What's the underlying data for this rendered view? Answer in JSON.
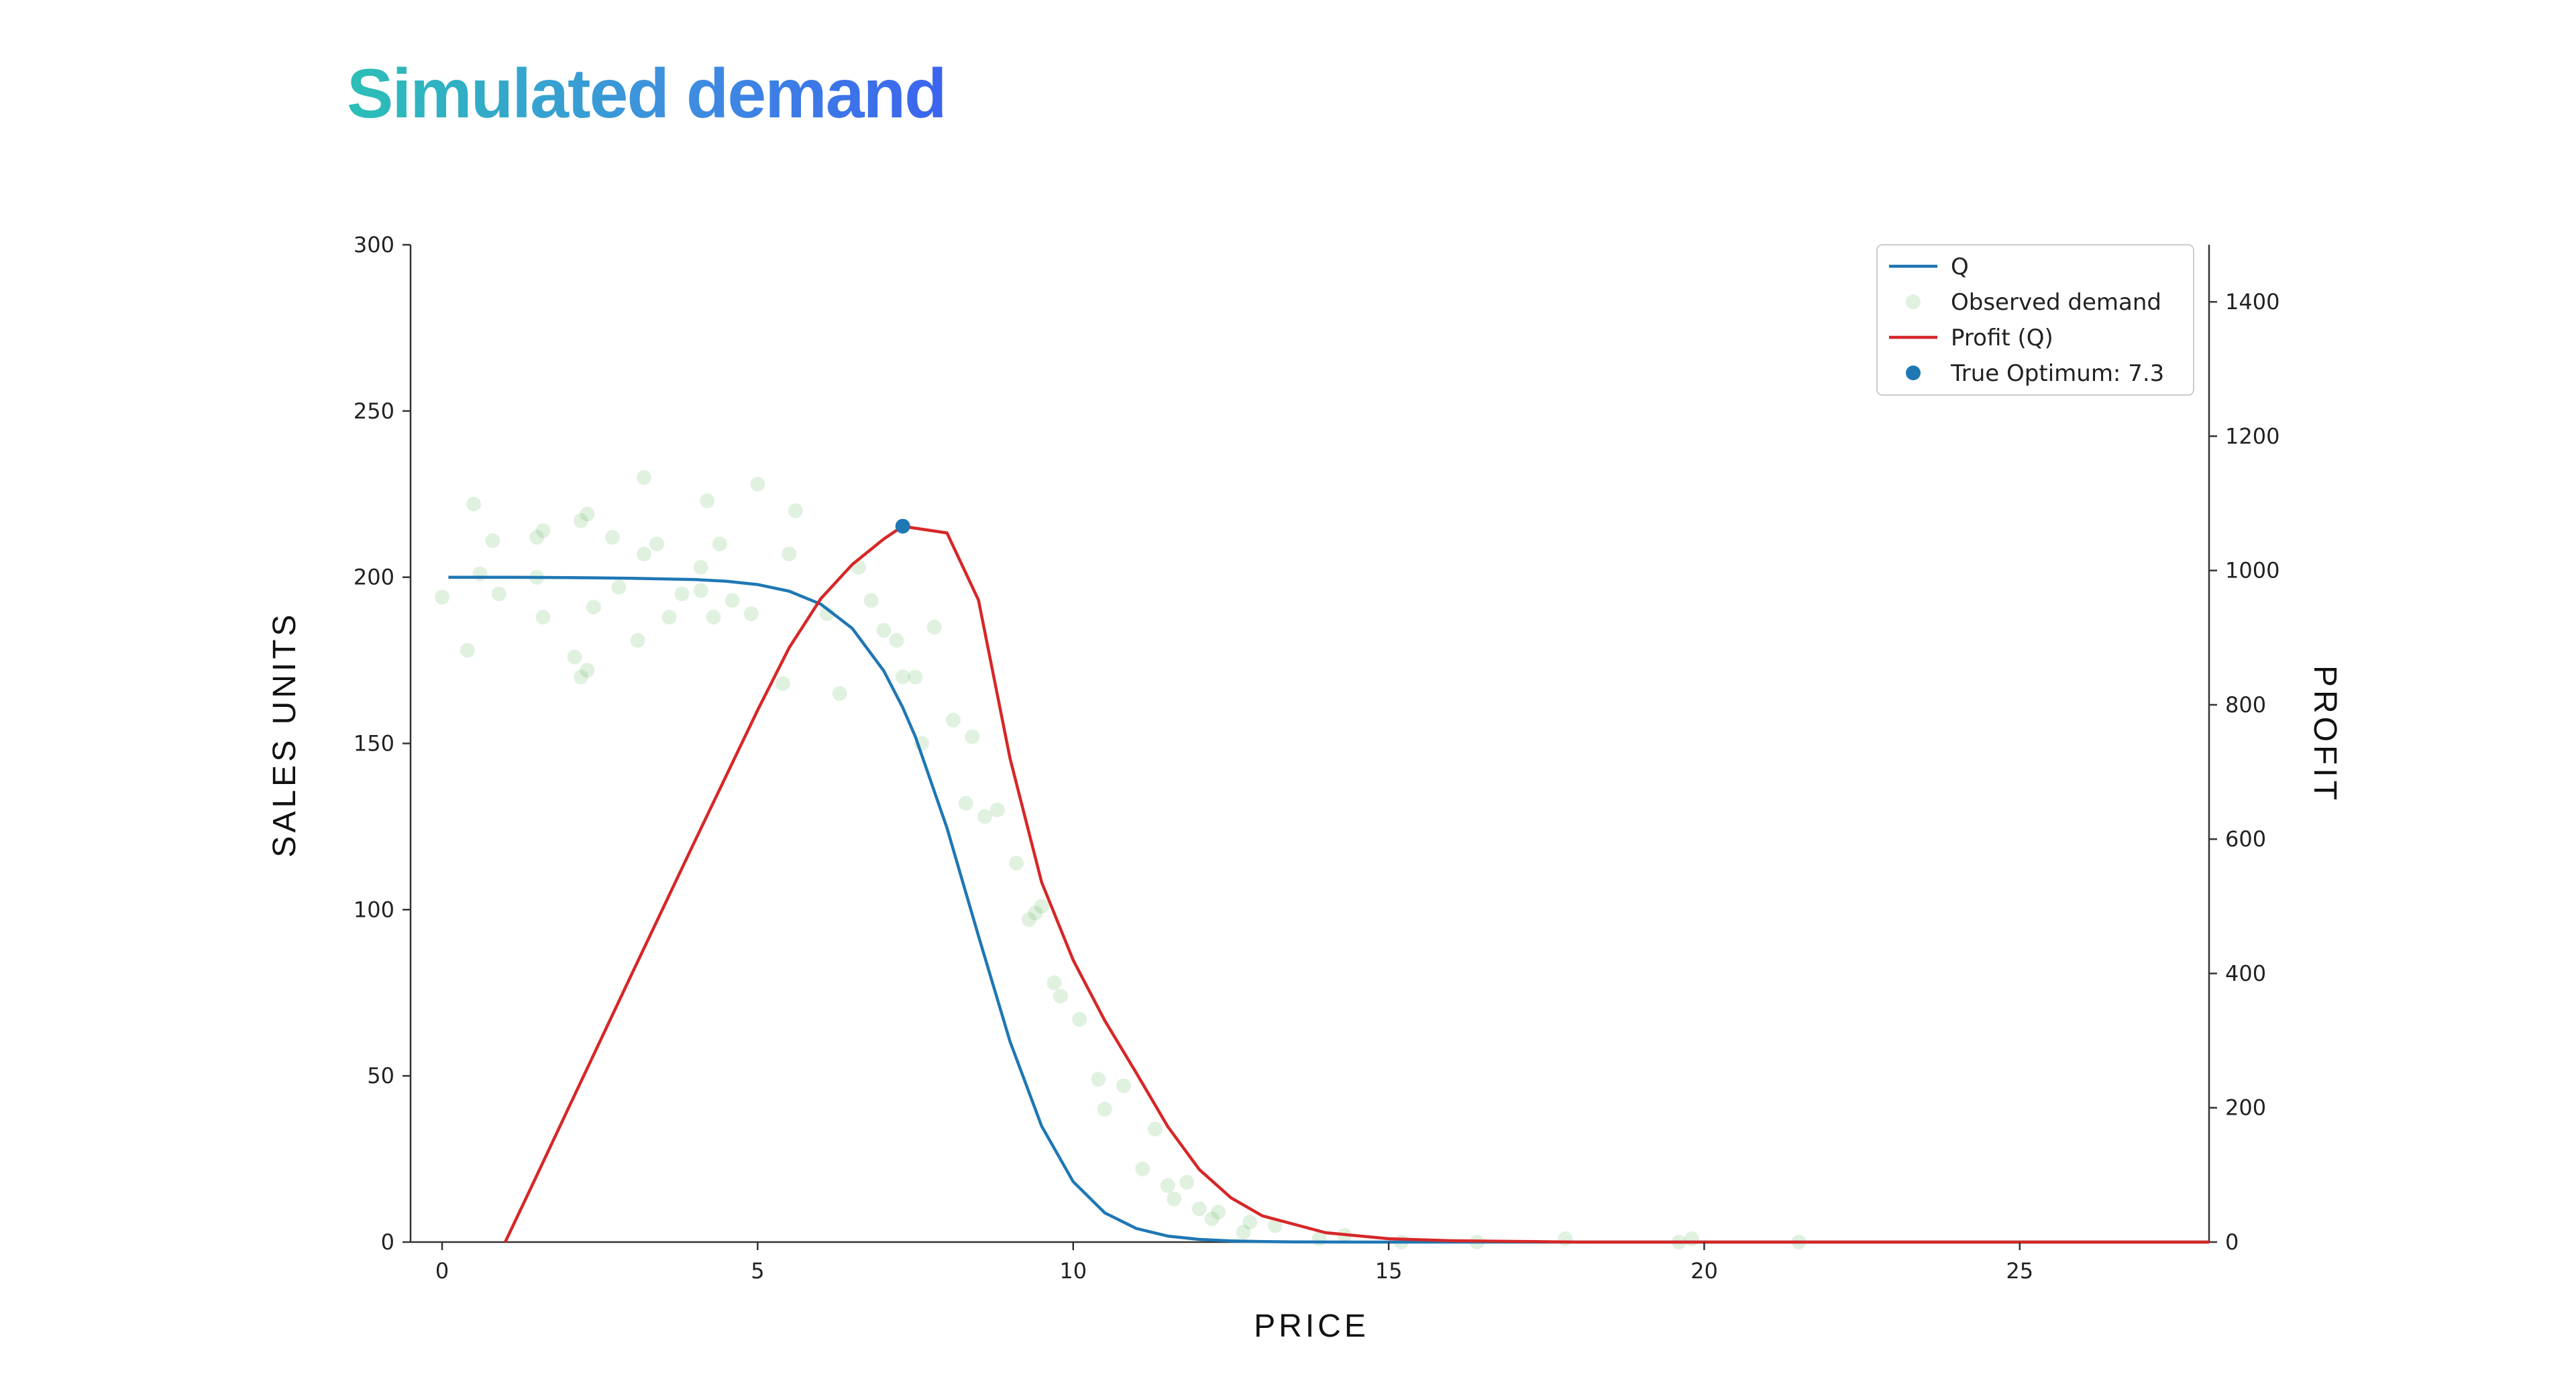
{
  "page": {
    "title": "Simulated demand"
  },
  "chart_data": {
    "type": "line",
    "xlabel": "PRICE",
    "ylabel": "SALES UNITS",
    "y2label": "PROFIT",
    "xlim": [
      -0.5,
      28
    ],
    "ylim": [
      0,
      300
    ],
    "y2lim": [
      0,
      1485
    ],
    "xticks": [
      0,
      5,
      10,
      15,
      20,
      25
    ],
    "yticks": [
      0,
      50,
      100,
      150,
      200,
      250,
      300
    ],
    "y2ticks": [
      0,
      200,
      400,
      600,
      800,
      1000,
      1200,
      1400
    ],
    "grid": false,
    "legend_position": "top-right",
    "colors": {
      "q": "#1f77b4",
      "profit": "#d62728",
      "observed": "#2ca02c",
      "optimum": "#1f77b4"
    },
    "series": [
      {
        "name": "Q",
        "axis": "left",
        "kind": "line",
        "x": [
          0.1,
          1,
          2,
          3,
          4,
          4.5,
          5,
          5.5,
          6,
          6.5,
          7,
          7.3,
          7.5,
          8,
          8.5,
          9,
          9.5,
          10,
          10.5,
          11,
          11.5,
          12,
          12.5,
          13,
          13.5,
          14,
          15,
          16,
          18,
          20,
          25,
          28
        ],
        "y": [
          200,
          200,
          199.9,
          199.7,
          199.3,
          198.8,
          197.8,
          195.8,
          191.9,
          184.6,
          171.8,
          160.8,
          152,
          124.6,
          92.1,
          60.3,
          34.9,
          18.2,
          8.8,
          4.1,
          1.8,
          0.8,
          0.35,
          0.15,
          0.06,
          0.03,
          0.005,
          0,
          0,
          0,
          0,
          0
        ]
      },
      {
        "name": "Observed demand",
        "axis": "left",
        "kind": "scatter",
        "x": [
          0,
          0.4,
          0.5,
          0.6,
          0.8,
          0.9,
          1.5,
          1.5,
          1.6,
          1.6,
          2.1,
          2.2,
          2.2,
          2.3,
          2.3,
          2.4,
          2.7,
          2.8,
          3.1,
          3.2,
          3.2,
          3.4,
          3.6,
          3.8,
          4.1,
          4.1,
          4.2,
          4.3,
          4.4,
          4.6,
          4.9,
          5.0,
          5.4,
          5.5,
          5.6,
          6.1,
          6.3,
          6.6,
          6.8,
          7.0,
          7.2,
          7.3,
          7.5,
          7.6,
          7.8,
          8.1,
          8.3,
          8.4,
          8.6,
          8.8,
          9.1,
          9.3,
          9.4,
          9.5,
          9.7,
          9.8,
          10.1,
          10.4,
          10.5,
          10.8,
          11.1,
          11.3,
          11.5,
          11.6,
          11.8,
          12.0,
          12.2,
          12.3,
          12.7,
          12.8,
          13.2,
          13.9,
          14.3,
          15.2,
          16.4,
          17.8,
          19.6,
          19.8,
          21.5
        ],
        "y": [
          194,
          178,
          222,
          201,
          211,
          195,
          200,
          212,
          214,
          188,
          176,
          217,
          170,
          219,
          172,
          191,
          212,
          197,
          181,
          230,
          207,
          210,
          188,
          195,
          196,
          203,
          223,
          188,
          210,
          193,
          189,
          228,
          168,
          207,
          220,
          189,
          165,
          203,
          193,
          184,
          181,
          170,
          170,
          150,
          185,
          157,
          132,
          152,
          128,
          130,
          114,
          97,
          99,
          101,
          78,
          74,
          67,
          49,
          40,
          47,
          22,
          34,
          17,
          13,
          18,
          10,
          7,
          9,
          3,
          6,
          5,
          1,
          2,
          0,
          0,
          1,
          0,
          1,
          0
        ]
      },
      {
        "name": "Profit (Q)",
        "axis": "right",
        "kind": "line",
        "x": [
          1,
          1.5,
          2,
          3,
          4,
          5,
          5.5,
          6,
          6.5,
          7,
          7.3,
          7.5,
          8,
          8.5,
          9,
          9.5,
          10,
          10.5,
          11,
          11.5,
          12,
          12.5,
          13,
          14,
          15,
          16,
          17,
          18,
          20,
          25,
          28
        ],
        "y": [
          0,
          99,
          199,
          398,
          596,
          792,
          885,
          958,
          1009,
          1047,
          1066,
          1063,
          1056,
          956,
          720,
          536,
          420,
          330,
          252,
          172,
          108,
          66,
          39,
          14,
          5,
          2,
          1,
          0,
          0,
          0,
          0
        ]
      },
      {
        "name": "True Optimum: 7.3",
        "axis": "right",
        "kind": "point",
        "x": [
          7.3
        ],
        "y": [
          1066
        ]
      }
    ]
  }
}
